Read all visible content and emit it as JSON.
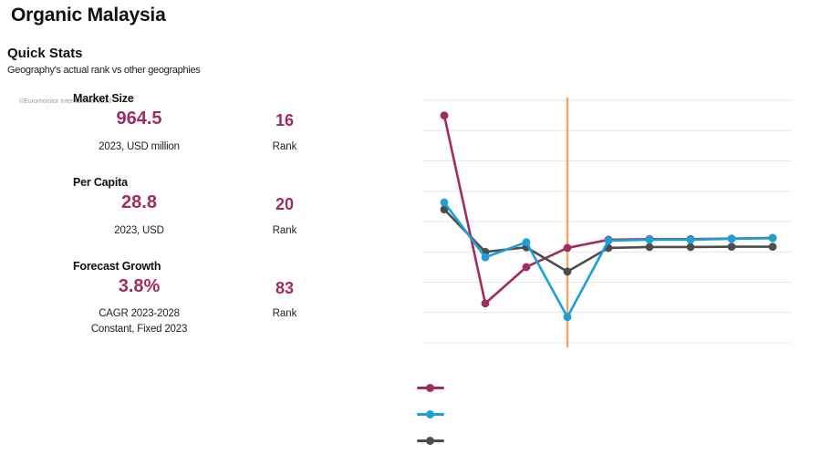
{
  "page": {
    "title": "Organic Malaysia"
  },
  "quick_stats": {
    "heading": "Quick Stats",
    "subheading": "Geography's actual rank vs other geographies",
    "watermark": "©Euromonitor International 2023",
    "accent_color": "#A02C5F",
    "stats": [
      {
        "label": "Market Size",
        "value": "964.5",
        "unit": "2023, USD million",
        "rank": "16",
        "rank_label": "Rank"
      },
      {
        "label": "Per Capita",
        "value": "28.8",
        "unit": "2023, USD",
        "rank": "20",
        "rank_label": "Rank"
      },
      {
        "label": "Forecast Growth",
        "value": "3.8%",
        "unit": "CAGR 2023-2028",
        "unit2": "Constant, Fixed 2023",
        "rank": "83",
        "rank_label": "Rank"
      }
    ]
  },
  "chart_data": {
    "type": "line",
    "title": "Geography's actual rank vs other geographies",
    "xlabel": "",
    "ylabel": "",
    "x": [
      1,
      2,
      3,
      4,
      5,
      6,
      7,
      8,
      9
    ],
    "y_axis": {
      "labels_visible": false,
      "unit": "gridline-units (0 = top gridline, 8 = bottom gridline)",
      "range": [
        0,
        8
      ]
    },
    "x_axis": {
      "labels_visible": false
    },
    "gridline_count": 9,
    "gridline_color": "#e7e7e7",
    "highlight_index": 4,
    "highlight_color": "#F5A363",
    "legend_position": "bottom-left",
    "legend_labels_visible": false,
    "series": [
      {
        "name": "series-1",
        "color": "#A02C5F",
        "values": [
          0.5,
          6.7,
          5.5,
          4.87,
          4.6,
          4.58,
          4.58,
          4.56,
          4.54
        ]
      },
      {
        "name": "series-3",
        "color": "#4D4D4D",
        "values": [
          3.6,
          5.0,
          4.85,
          5.65,
          4.87,
          4.84,
          4.84,
          4.83,
          4.83
        ]
      },
      {
        "name": "series-2",
        "color": "#1E9FD8",
        "values": [
          3.37,
          5.18,
          4.68,
          7.15,
          4.63,
          4.6,
          4.6,
          4.57,
          4.55
        ]
      }
    ]
  }
}
